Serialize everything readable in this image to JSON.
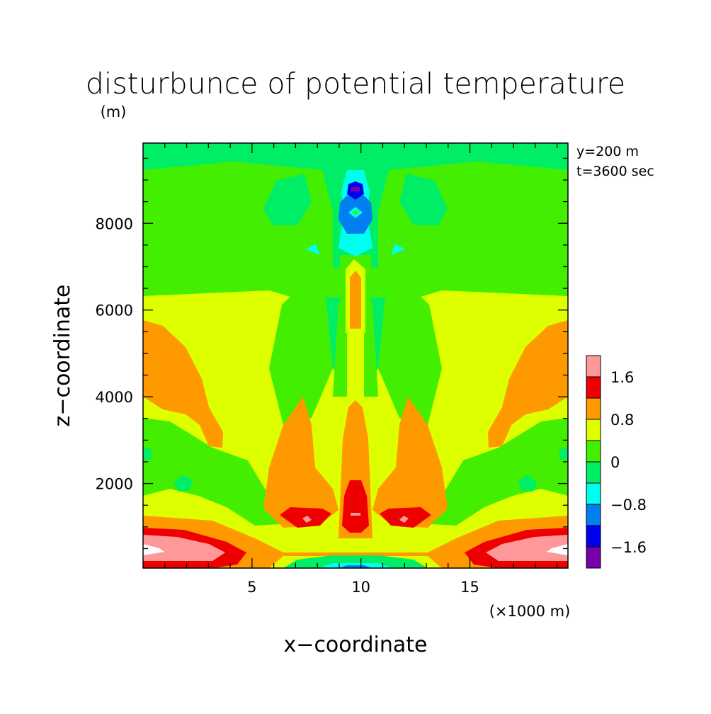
{
  "chart_data": {
    "type": "heatmap",
    "title": "disturbunce of potential temperature",
    "xlabel": "x−coordinate",
    "ylabel": "z−coordinate",
    "x_unit_label": "(×1000 m)",
    "y_unit_label": "(m)",
    "annotations": [
      "y=200 m",
      "t=3600 sec"
    ],
    "xlim": [
      0,
      19.5
    ],
    "ylim": [
      50,
      9850
    ],
    "x_ticks": [
      5,
      10,
      15
    ],
    "y_ticks": [
      2000,
      4000,
      6000,
      8000
    ],
    "colorbar": {
      "labels": [
        "1.6",
        "0.8",
        "0",
        "−0.8",
        "−1.6"
      ],
      "label_values": [
        1.6,
        0.8,
        0,
        -0.8,
        -1.6
      ],
      "levels": [
        -2.0,
        -1.6,
        -1.2,
        -0.8,
        -0.4,
        0,
        0.4,
        0.8,
        1.2,
        1.6,
        2.0
      ],
      "colors": [
        "#7700aa",
        "#0000ee",
        "#0080ee",
        "#00ffee",
        "#00ee66",
        "#44ee00",
        "#ddff00",
        "#ff9900",
        "#ee0000",
        "#ff9999"
      ]
    },
    "background_color": "#00ee66",
    "regions": [
      {
        "value": 0.2,
        "color": "#44ee00",
        "x": [
          0,
          19.5
        ],
        "z": [
          6600,
          7000
        ]
      },
      {
        "value": 0.6,
        "color": "#ddff00",
        "x": [
          0,
          19.5
        ],
        "z": [
          200,
          6300
        ]
      },
      {
        "value": 0.2,
        "color": "#44ee00",
        "x": [
          0,
          3.5
        ],
        "z": [
          2000,
          3800
        ]
      },
      {
        "value": 0.2,
        "color": "#44ee00",
        "x": [
          16,
          19.5
        ],
        "z": [
          2000,
          3800
        ]
      },
      {
        "value": 1.0,
        "color": "#ff9900",
        "x": [
          0,
          4.5
        ],
        "z": [
          3600,
          5800
        ]
      },
      {
        "value": 1.0,
        "color": "#ff9900",
        "x": [
          15,
          19.5
        ],
        "z": [
          3600,
          5800
        ]
      },
      {
        "value": 1.0,
        "color": "#ff9900",
        "x": [
          6.5,
          9
        ],
        "z": [
          1000,
          3900
        ]
      },
      {
        "value": 1.0,
        "color": "#ff9900",
        "x": [
          10.5,
          13
        ],
        "z": [
          1000,
          3900
        ]
      },
      {
        "value": 1.0,
        "color": "#ff9900",
        "x": [
          9.5,
          10.5
        ],
        "z": [
          600,
          3600
        ]
      },
      {
        "value": 1.0,
        "color": "#ff9900",
        "x": [
          0,
          19.5
        ],
        "z": [
          200,
          1200
        ]
      },
      {
        "value": 1.4,
        "color": "#ee0000",
        "x": [
          0,
          5
        ],
        "z": [
          50,
          1000
        ]
      },
      {
        "value": 1.4,
        "color": "#ee0000",
        "x": [
          14.5,
          19.5
        ],
        "z": [
          50,
          1000
        ]
      },
      {
        "value": 1.4,
        "color": "#ee0000",
        "x": [
          9.5,
          10.5
        ],
        "z": [
          800,
          2100
        ]
      },
      {
        "value": 1.8,
        "color": "#ff9999",
        "x": [
          0,
          4
        ],
        "z": [
          300,
          700
        ]
      },
      {
        "value": 1.8,
        "color": "#ff9999",
        "x": [
          15.5,
          19.5
        ],
        "z": [
          300,
          700
        ]
      },
      {
        "value": -0.2,
        "color": "#00ee66",
        "x": [
          9,
          11
        ],
        "z": [
          50,
          250
        ]
      },
      {
        "value": -0.6,
        "color": "#00ffee",
        "x": [
          9.5,
          10.5
        ],
        "z": [
          50,
          120
        ]
      },
      {
        "value": -0.6,
        "color": "#00ffee",
        "x": [
          9.2,
          10.8
        ],
        "z": [
          7400,
          9300
        ]
      },
      {
        "value": -1.0,
        "color": "#0080ee",
        "x": [
          9.5,
          10.5
        ],
        "z": [
          7800,
          8900
        ]
      },
      {
        "value": -1.4,
        "color": "#0000ee",
        "x": [
          9.7,
          10.3
        ],
        "z": [
          8600,
          8900
        ]
      },
      {
        "value": -1.8,
        "color": "#7700aa",
        "x": [
          9.85,
          10.15
        ],
        "z": [
          8700,
          8800
        ]
      }
    ]
  }
}
